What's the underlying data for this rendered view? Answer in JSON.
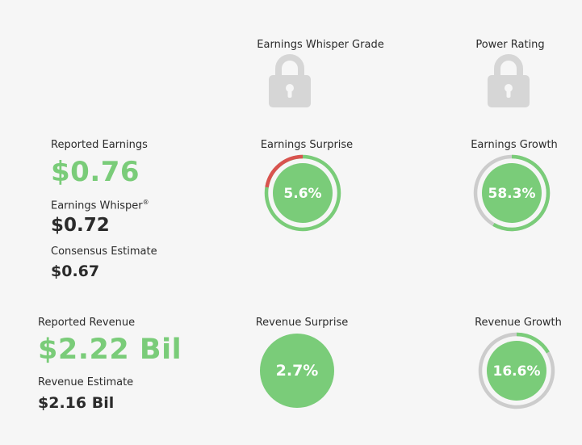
{
  "grades": {
    "earnings_whisper_grade_label": "Earnings Whisper Grade",
    "power_rating_label": "Power Rating"
  },
  "earnings": {
    "reported_label": "Reported Earnings",
    "reported_value": "$0.76",
    "whisper_label": "Earnings Whisper",
    "whisper_mark": "®",
    "whisper_value": "$0.72",
    "consensus_label": "Consensus Estimate",
    "consensus_value": "$0.67",
    "surprise_label": "Earnings Surprise",
    "surprise_value": "5.6%",
    "surprise_fraction": 0.056,
    "growth_label": "Earnings Growth",
    "growth_value": "58.3%",
    "growth_fraction": 0.583
  },
  "revenue": {
    "reported_label": "Reported Revenue",
    "reported_value": "$2.22 Bil",
    "estimate_label": "Revenue Estimate",
    "estimate_value": "$2.16 Bil",
    "surprise_label": "Revenue Surprise",
    "surprise_value": "2.7%",
    "growth_label": "Revenue Growth",
    "growth_value": "16.6%",
    "growth_fraction": 0.166
  },
  "colors": {
    "green": "#7acc79",
    "red": "#d9534f",
    "gray": "#cccccc",
    "lock_gray": "#d6d6d6",
    "text": "#2b2b2b"
  },
  "icons": [
    "lock-icon"
  ]
}
